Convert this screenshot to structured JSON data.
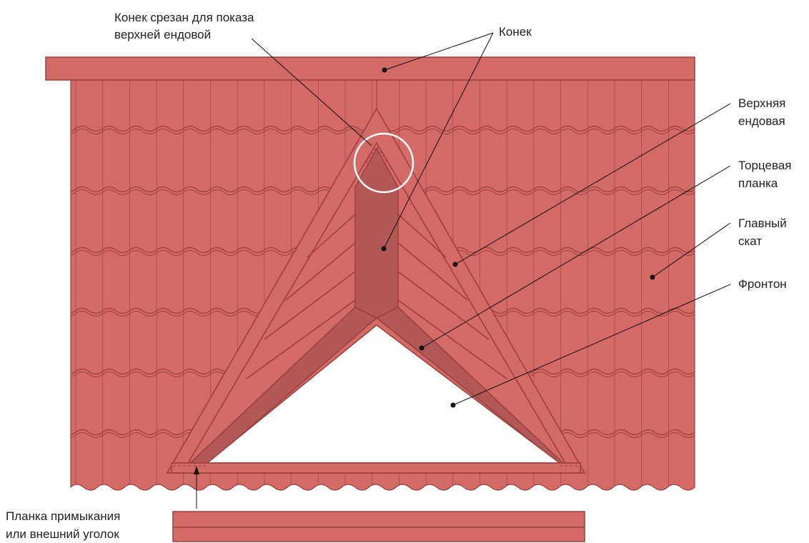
{
  "labels": [
    {
      "lines": [
        "Конек срезан для показа",
        "верхней ендовой"
      ]
    },
    {
      "lines": [
        "Конек"
      ]
    },
    {
      "lines": [
        "Верхняя",
        "ендовая"
      ]
    },
    {
      "lines": [
        "Торцевая",
        "планка"
      ]
    },
    {
      "lines": [
        "Главный",
        "скат"
      ]
    },
    {
      "lines": [
        "Фронтон"
      ]
    },
    {
      "lines": [
        "Планка примыкания",
        "или внешний уголок"
      ]
    }
  ]
}
